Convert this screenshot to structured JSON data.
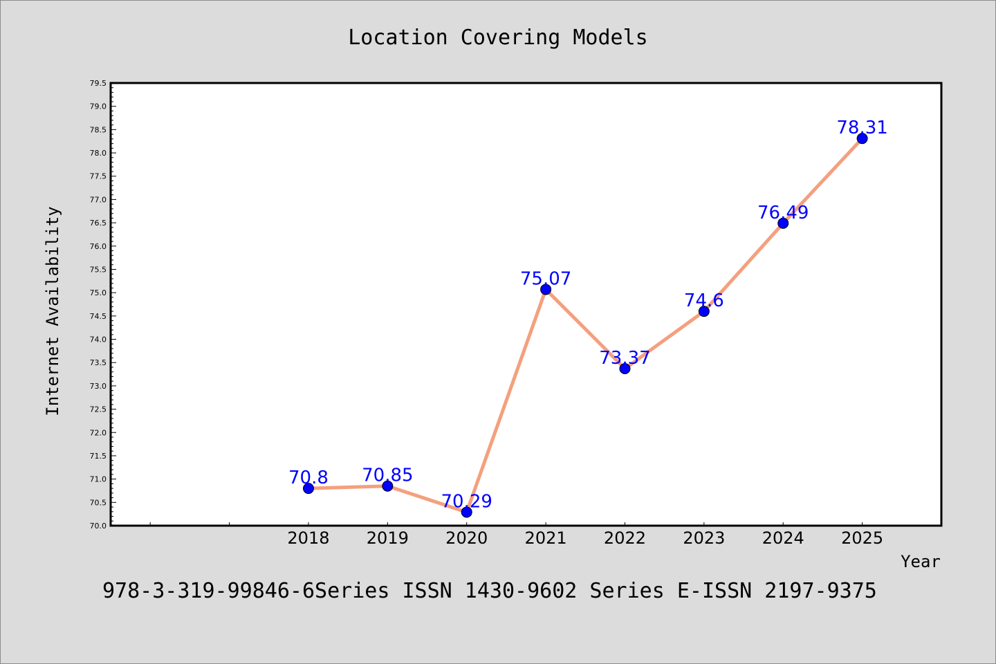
{
  "chart_data": {
    "type": "line",
    "title": "Location Covering Models",
    "xlabel": "Year",
    "ylabel": "Internet Availability",
    "categories": [
      "2018",
      "2019",
      "2020",
      "2021",
      "2022",
      "2023",
      "2024",
      "2025"
    ],
    "series": [
      {
        "values": [
          70.8,
          70.85,
          70.29,
          75.07,
          73.37,
          74.6,
          76.49,
          78.31
        ],
        "data_labels": [
          "70.8",
          "70.85",
          "70.29",
          "75.07",
          "73.37",
          "74.6",
          "76.49",
          "78.31"
        ],
        "line_color": "#f4a07e",
        "marker_color": "#0000ff"
      }
    ],
    "ylim": [
      70.0,
      79.5
    ],
    "yticks": [
      "70.0",
      "70.5",
      "71.0",
      "71.5",
      "72.0",
      "72.5",
      "73.0",
      "73.5",
      "74.0",
      "74.5",
      "75.0",
      "75.5",
      "76.0",
      "76.5",
      "77.0",
      "77.5",
      "78.0",
      "78.5",
      "79.0",
      "79.5"
    ],
    "x_slots_before_first_category": 2,
    "grid": false,
    "plot_background": "#ffffff",
    "figure_background": "#dcdcdc"
  },
  "footer_text": "978-3-319-99846-6Series ISSN 1430-9602 Series E-ISSN 2197-9375"
}
